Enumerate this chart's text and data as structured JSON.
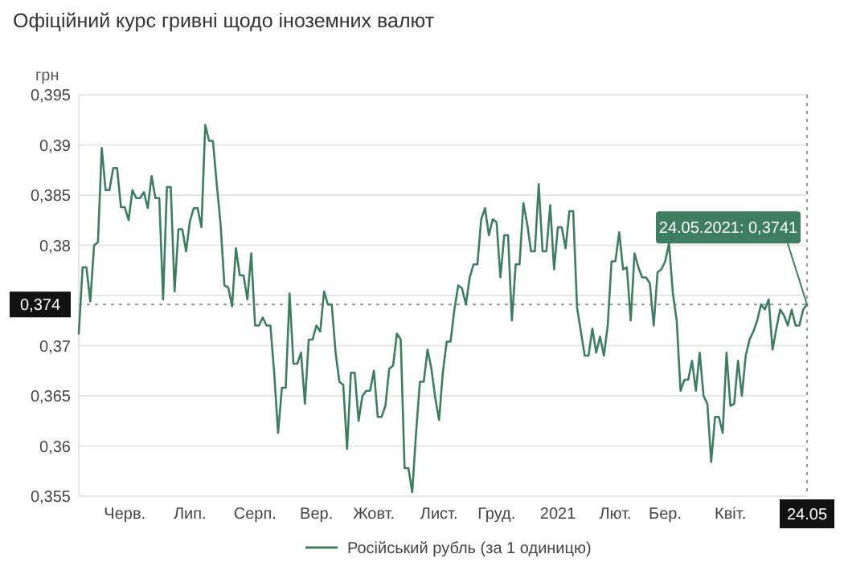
{
  "chart_data": {
    "type": "line",
    "title": "Офіційний курс гривні щодо іноземних валют",
    "ylabel": "грн",
    "categories": [
      null,
      null,
      null,
      null,
      null,
      null,
      null,
      null,
      null,
      null,
      null,
      null,
      "Черв.",
      null,
      null,
      null,
      null,
      null,
      null,
      null,
      null,
      null,
      null,
      null,
      null,
      null,
      null,
      null,
      null,
      "Лип.",
      null,
      null,
      null,
      null,
      null,
      null,
      null,
      null,
      null,
      null,
      null,
      null,
      null,
      null,
      null,
      null,
      "Серп.",
      null,
      null,
      null,
      null,
      null,
      null,
      null,
      null,
      null,
      null,
      null,
      null,
      null,
      null,
      null,
      "Вер.",
      null,
      null,
      null,
      null,
      null,
      null,
      null,
      null,
      null,
      null,
      null,
      null,
      null,
      null,
      "Жовт.",
      null,
      null,
      null,
      null,
      null,
      null,
      null,
      null,
      null,
      null,
      null,
      null,
      null,
      null,
      null,
      null,
      "Лист.",
      null,
      null,
      null,
      null,
      null,
      null,
      null,
      null,
      null,
      null,
      null,
      null,
      null,
      null,
      "Груд.",
      null,
      null,
      null,
      null,
      null,
      null,
      null,
      null,
      null,
      null,
      null,
      null,
      null,
      null,
      null,
      "2021",
      null,
      null,
      null,
      null,
      null,
      null,
      null,
      null,
      null,
      null,
      null,
      null,
      null,
      null,
      "Лют.",
      null,
      null,
      null,
      null,
      null,
      null,
      null,
      null,
      null,
      null,
      null,
      null,
      "Бер.",
      null,
      null,
      null,
      null,
      null,
      null,
      null,
      null,
      null,
      null,
      null,
      null,
      null,
      null,
      null,
      null,
      "Квіт.",
      null,
      null,
      null,
      null,
      null,
      null,
      null,
      null,
      null,
      null,
      null,
      null,
      null,
      null,
      null,
      null,
      null,
      null,
      null,
      "24.05"
    ],
    "series": [
      {
        "name": "Російський рубль (за 1 одиницю)",
        "color": "#3d7d62",
        "values": [
          0.3712,
          0.3778,
          0.3778,
          0.3744,
          0.38,
          0.3803,
          0.3897,
          0.3855,
          0.3855,
          0.3877,
          0.3877,
          0.3838,
          0.3838,
          0.3825,
          0.3855,
          0.3847,
          0.3847,
          0.3853,
          0.3837,
          0.3869,
          0.3847,
          0.3847,
          0.3746,
          0.3858,
          0.3858,
          0.3754,
          0.3816,
          0.3816,
          0.3794,
          0.3824,
          0.3837,
          0.3837,
          0.3818,
          0.392,
          0.3904,
          0.3904,
          0.3861,
          0.3821,
          0.376,
          0.3758,
          0.3739,
          0.3797,
          0.377,
          0.377,
          0.3746,
          0.3792,
          0.372,
          0.372,
          0.3728,
          0.372,
          0.372,
          0.3672,
          0.3613,
          0.3658,
          0.3658,
          0.3752,
          0.3682,
          0.3682,
          0.3693,
          0.3642,
          0.3706,
          0.3706,
          0.372,
          0.3714,
          0.3754,
          0.3741,
          0.3741,
          0.3693,
          0.3664,
          0.3661,
          0.3597,
          0.3673,
          0.3673,
          0.3625,
          0.365,
          0.3655,
          0.3655,
          0.3675,
          0.3629,
          0.3629,
          0.364,
          0.3677,
          0.368,
          0.3712,
          0.3706,
          0.3578,
          0.3578,
          0.3554,
          0.3613,
          0.3664,
          0.3664,
          0.3696,
          0.3677,
          0.3648,
          0.3626,
          0.3674,
          0.3704,
          0.3704,
          0.3736,
          0.376,
          0.3757,
          0.3741,
          0.3768,
          0.3781,
          0.3781,
          0.3826,
          0.3837,
          0.381,
          0.3826,
          0.3823,
          0.3768,
          0.381,
          0.381,
          0.3725,
          0.3781,
          0.3781,
          0.3842,
          0.3821,
          0.3794,
          0.3794,
          0.3861,
          0.3794,
          0.3794,
          0.384,
          0.3776,
          0.3818,
          0.3818,
          0.3797,
          0.3834,
          0.3834,
          0.3738,
          0.3714,
          0.369,
          0.369,
          0.3717,
          0.3693,
          0.3709,
          0.369,
          0.372,
          0.3784,
          0.3784,
          0.3813,
          0.3776,
          0.3778,
          0.3725,
          0.3792,
          0.3778,
          0.3768,
          0.3768,
          0.3762,
          0.372,
          0.3773,
          0.3776,
          0.3784,
          0.3802,
          0.3752,
          0.3725,
          0.3655,
          0.3666,
          0.3666,
          0.3685,
          0.3655,
          0.3693,
          0.365,
          0.3642,
          0.3584,
          0.3629,
          0.3629,
          0.3613,
          0.3693,
          0.364,
          0.3642,
          0.3685,
          0.365,
          0.369,
          0.3706,
          0.3714,
          0.3725,
          0.3741,
          0.3736,
          0.3746,
          0.3696,
          0.3717,
          0.3736,
          0.373,
          0.372,
          0.3736,
          0.372,
          0.372,
          0.3736,
          0.3741
        ]
      }
    ],
    "ylim": [
      0.355,
      0.395
    ],
    "yticks": [
      {
        "value": 0.355,
        "label": "0,355"
      },
      {
        "value": 0.36,
        "label": "0,36"
      },
      {
        "value": 0.365,
        "label": "0,365"
      },
      {
        "value": 0.37,
        "label": "0,37"
      },
      {
        "value": 0.375,
        "label": null
      },
      {
        "value": 0.38,
        "label": "0,38"
      },
      {
        "value": 0.385,
        "label": "0,385"
      },
      {
        "value": 0.39,
        "label": "0,39"
      },
      {
        "value": 0.395,
        "label": "0,395"
      }
    ],
    "ref_lines": [
      {
        "axis": "y",
        "value": 0.3741,
        "label": "0,374",
        "line_style": "dotted"
      },
      {
        "axis": "x",
        "value": "24.05",
        "line_style": "dotted"
      }
    ],
    "annotations": [
      {
        "text": "24.05.2021: 0,3741",
        "x": "24.05",
        "y": 0.3741
      }
    ],
    "grid": "y",
    "legend": "bottom",
    "marker": "none",
    "line_style": "solid"
  }
}
